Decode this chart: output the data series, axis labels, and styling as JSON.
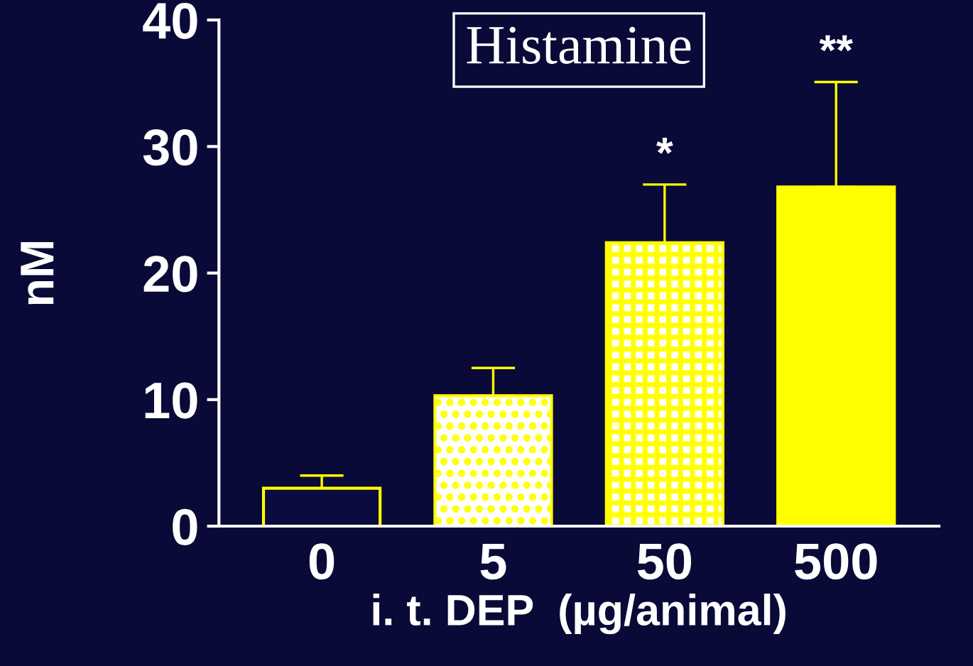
{
  "chart_data": {
    "type": "bar",
    "title": "Histamine",
    "xlabel": "i. t. DEP  (µg/animal)",
    "ylabel": "nM",
    "categories": [
      "0",
      "5",
      "50",
      "500"
    ],
    "values": [
      3.0,
      10.3,
      22.4,
      26.8
    ],
    "colors": [
      "#0b0b40",
      "#ffff00",
      "#ffff00",
      "#ffff00"
    ],
    "errors": [
      [
        3.0,
        4.0
      ],
      [
        10.3,
        12.5
      ],
      [
        22.4,
        27.0
      ],
      [
        26.8,
        35.1
      ]
    ],
    "ylim": [
      0,
      40
    ],
    "yticks": [
      0,
      10,
      20,
      30,
      40
    ],
    "grid": false,
    "legend": false,
    "annotations": [
      {
        "text": "*",
        "x": "50",
        "y": 27.0
      },
      {
        "text": "**",
        "x": "500",
        "y": 35.1
      }
    ]
  }
}
